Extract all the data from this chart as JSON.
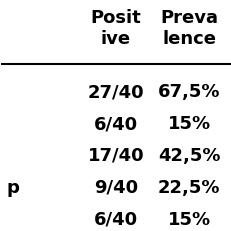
{
  "headers": [
    "Posit\nive",
    "Preva\nlence"
  ],
  "col1_label": [
    "",
    "",
    "",
    "p",
    ""
  ],
  "col2_values": [
    "27/40",
    "6/40",
    "17/40",
    "9/40",
    "6/40"
  ],
  "col3_values": [
    "67,5%",
    "15%",
    "42,5%",
    "22,5%",
    "15%"
  ],
  "bg_color": "#ffffff",
  "text_color": "#000000",
  "header_fontsize": 13,
  "cell_fontsize": 13,
  "label_fontsize": 13
}
